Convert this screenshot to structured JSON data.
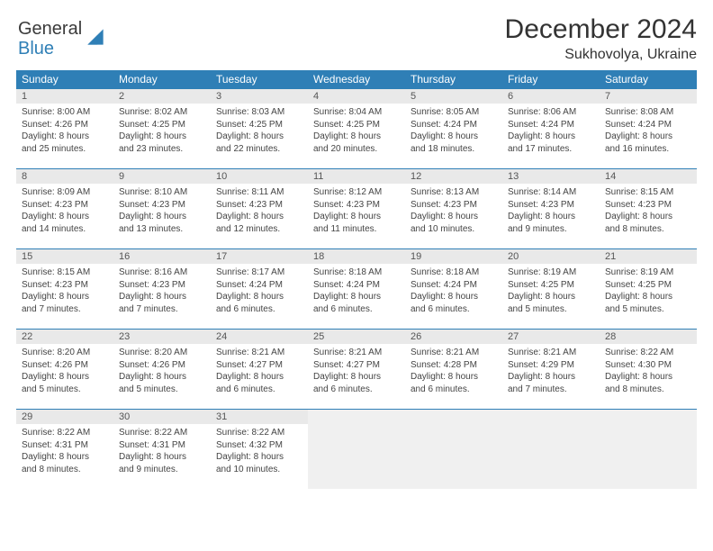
{
  "brand": {
    "word1": "General",
    "word2": "Blue",
    "logo_color": "#2f7fb6"
  },
  "title": "December 2024",
  "location": "Sukhovolya, Ukraine",
  "colors": {
    "header_bg": "#2f7fb6",
    "header_text": "#ffffff",
    "daynum_bg": "#e9e9e9",
    "row_divider": "#2f7fb6",
    "empty_bg": "#f0f0f0"
  },
  "weekday_labels": [
    "Sunday",
    "Monday",
    "Tuesday",
    "Wednesday",
    "Thursday",
    "Friday",
    "Saturday"
  ],
  "days": [
    {
      "n": "1",
      "sr": "Sunrise: 8:00 AM",
      "ss": "Sunset: 4:26 PM",
      "d1": "Daylight: 8 hours",
      "d2": "and 25 minutes."
    },
    {
      "n": "2",
      "sr": "Sunrise: 8:02 AM",
      "ss": "Sunset: 4:25 PM",
      "d1": "Daylight: 8 hours",
      "d2": "and 23 minutes."
    },
    {
      "n": "3",
      "sr": "Sunrise: 8:03 AM",
      "ss": "Sunset: 4:25 PM",
      "d1": "Daylight: 8 hours",
      "d2": "and 22 minutes."
    },
    {
      "n": "4",
      "sr": "Sunrise: 8:04 AM",
      "ss": "Sunset: 4:25 PM",
      "d1": "Daylight: 8 hours",
      "d2": "and 20 minutes."
    },
    {
      "n": "5",
      "sr": "Sunrise: 8:05 AM",
      "ss": "Sunset: 4:24 PM",
      "d1": "Daylight: 8 hours",
      "d2": "and 18 minutes."
    },
    {
      "n": "6",
      "sr": "Sunrise: 8:06 AM",
      "ss": "Sunset: 4:24 PM",
      "d1": "Daylight: 8 hours",
      "d2": "and 17 minutes."
    },
    {
      "n": "7",
      "sr": "Sunrise: 8:08 AM",
      "ss": "Sunset: 4:24 PM",
      "d1": "Daylight: 8 hours",
      "d2": "and 16 minutes."
    },
    {
      "n": "8",
      "sr": "Sunrise: 8:09 AM",
      "ss": "Sunset: 4:23 PM",
      "d1": "Daylight: 8 hours",
      "d2": "and 14 minutes."
    },
    {
      "n": "9",
      "sr": "Sunrise: 8:10 AM",
      "ss": "Sunset: 4:23 PM",
      "d1": "Daylight: 8 hours",
      "d2": "and 13 minutes."
    },
    {
      "n": "10",
      "sr": "Sunrise: 8:11 AM",
      "ss": "Sunset: 4:23 PM",
      "d1": "Daylight: 8 hours",
      "d2": "and 12 minutes."
    },
    {
      "n": "11",
      "sr": "Sunrise: 8:12 AM",
      "ss": "Sunset: 4:23 PM",
      "d1": "Daylight: 8 hours",
      "d2": "and 11 minutes."
    },
    {
      "n": "12",
      "sr": "Sunrise: 8:13 AM",
      "ss": "Sunset: 4:23 PM",
      "d1": "Daylight: 8 hours",
      "d2": "and 10 minutes."
    },
    {
      "n": "13",
      "sr": "Sunrise: 8:14 AM",
      "ss": "Sunset: 4:23 PM",
      "d1": "Daylight: 8 hours",
      "d2": "and 9 minutes."
    },
    {
      "n": "14",
      "sr": "Sunrise: 8:15 AM",
      "ss": "Sunset: 4:23 PM",
      "d1": "Daylight: 8 hours",
      "d2": "and 8 minutes."
    },
    {
      "n": "15",
      "sr": "Sunrise: 8:15 AM",
      "ss": "Sunset: 4:23 PM",
      "d1": "Daylight: 8 hours",
      "d2": "and 7 minutes."
    },
    {
      "n": "16",
      "sr": "Sunrise: 8:16 AM",
      "ss": "Sunset: 4:23 PM",
      "d1": "Daylight: 8 hours",
      "d2": "and 7 minutes."
    },
    {
      "n": "17",
      "sr": "Sunrise: 8:17 AM",
      "ss": "Sunset: 4:24 PM",
      "d1": "Daylight: 8 hours",
      "d2": "and 6 minutes."
    },
    {
      "n": "18",
      "sr": "Sunrise: 8:18 AM",
      "ss": "Sunset: 4:24 PM",
      "d1": "Daylight: 8 hours",
      "d2": "and 6 minutes."
    },
    {
      "n": "19",
      "sr": "Sunrise: 8:18 AM",
      "ss": "Sunset: 4:24 PM",
      "d1": "Daylight: 8 hours",
      "d2": "and 6 minutes."
    },
    {
      "n": "20",
      "sr": "Sunrise: 8:19 AM",
      "ss": "Sunset: 4:25 PM",
      "d1": "Daylight: 8 hours",
      "d2": "and 5 minutes."
    },
    {
      "n": "21",
      "sr": "Sunrise: 8:19 AM",
      "ss": "Sunset: 4:25 PM",
      "d1": "Daylight: 8 hours",
      "d2": "and 5 minutes."
    },
    {
      "n": "22",
      "sr": "Sunrise: 8:20 AM",
      "ss": "Sunset: 4:26 PM",
      "d1": "Daylight: 8 hours",
      "d2": "and 5 minutes."
    },
    {
      "n": "23",
      "sr": "Sunrise: 8:20 AM",
      "ss": "Sunset: 4:26 PM",
      "d1": "Daylight: 8 hours",
      "d2": "and 5 minutes."
    },
    {
      "n": "24",
      "sr": "Sunrise: 8:21 AM",
      "ss": "Sunset: 4:27 PM",
      "d1": "Daylight: 8 hours",
      "d2": "and 6 minutes."
    },
    {
      "n": "25",
      "sr": "Sunrise: 8:21 AM",
      "ss": "Sunset: 4:27 PM",
      "d1": "Daylight: 8 hours",
      "d2": "and 6 minutes."
    },
    {
      "n": "26",
      "sr": "Sunrise: 8:21 AM",
      "ss": "Sunset: 4:28 PM",
      "d1": "Daylight: 8 hours",
      "d2": "and 6 minutes."
    },
    {
      "n": "27",
      "sr": "Sunrise: 8:21 AM",
      "ss": "Sunset: 4:29 PM",
      "d1": "Daylight: 8 hours",
      "d2": "and 7 minutes."
    },
    {
      "n": "28",
      "sr": "Sunrise: 8:22 AM",
      "ss": "Sunset: 4:30 PM",
      "d1": "Daylight: 8 hours",
      "d2": "and 8 minutes."
    },
    {
      "n": "29",
      "sr": "Sunrise: 8:22 AM",
      "ss": "Sunset: 4:31 PM",
      "d1": "Daylight: 8 hours",
      "d2": "and 8 minutes."
    },
    {
      "n": "30",
      "sr": "Sunrise: 8:22 AM",
      "ss": "Sunset: 4:31 PM",
      "d1": "Daylight: 8 hours",
      "d2": "and 9 minutes."
    },
    {
      "n": "31",
      "sr": "Sunrise: 8:22 AM",
      "ss": "Sunset: 4:32 PM",
      "d1": "Daylight: 8 hours",
      "d2": "and 10 minutes."
    }
  ],
  "layout": {
    "start_weekday": 0,
    "trailing_blanks": 4
  }
}
